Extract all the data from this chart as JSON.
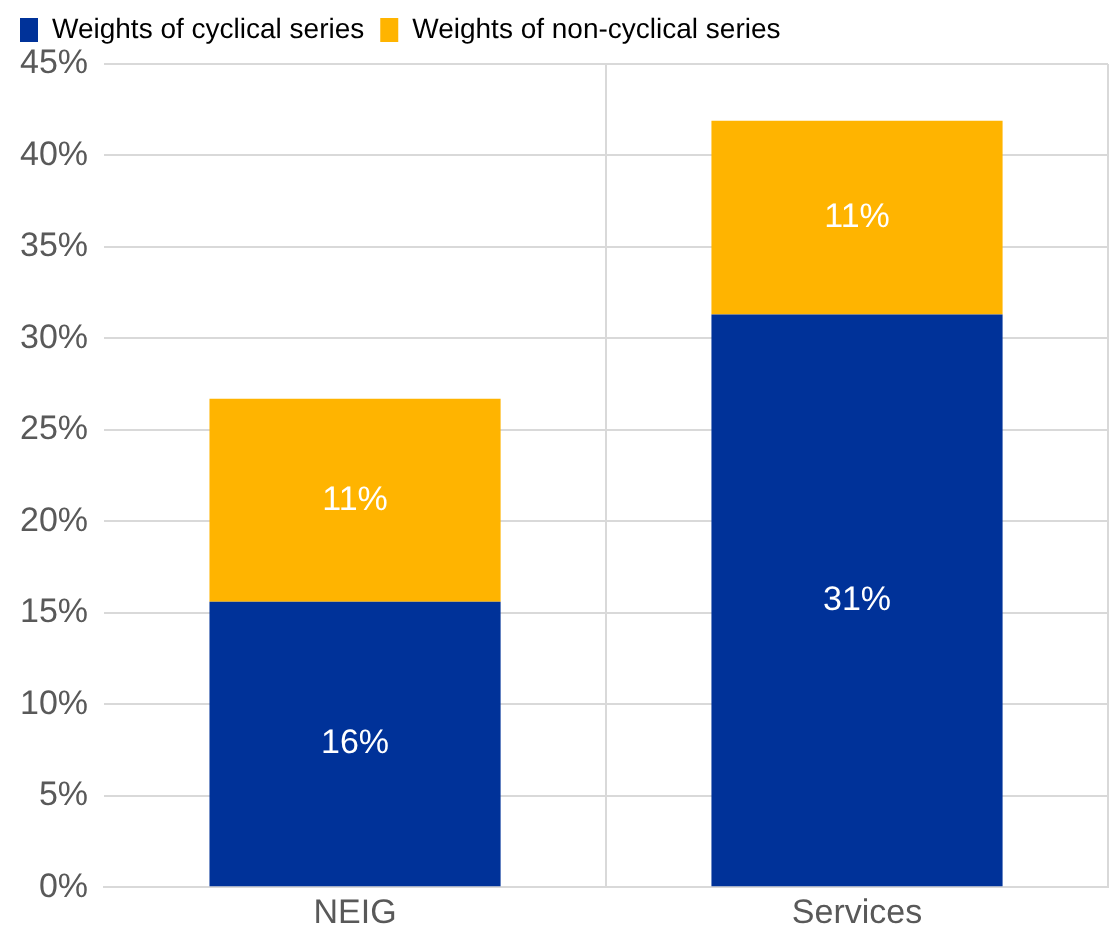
{
  "chart_data": {
    "type": "bar",
    "stacked": true,
    "categories": [
      "NEIG",
      "Services"
    ],
    "series": [
      {
        "name": "Weights of cyclical series",
        "color": "#003299",
        "values": [
          15.6,
          31.3
        ],
        "value_labels": [
          "16%",
          "31%"
        ]
      },
      {
        "name": "Weights of non-cyclical series",
        "color": "#ffb400",
        "values": [
          11.1,
          10.6
        ],
        "value_labels": [
          "11%",
          "11%"
        ]
      }
    ],
    "ylim": [
      0,
      45
    ],
    "yticks": [
      {
        "value": 0,
        "label": "0%"
      },
      {
        "value": 5,
        "label": "5%"
      },
      {
        "value": 10,
        "label": "10%"
      },
      {
        "value": 15,
        "label": "15%"
      },
      {
        "value": 20,
        "label": "20%"
      },
      {
        "value": 25,
        "label": "25%"
      },
      {
        "value": 30,
        "label": "30%"
      },
      {
        "value": 35,
        "label": "35%"
      },
      {
        "value": 40,
        "label": "40%"
      },
      {
        "value": 45,
        "label": "45%"
      }
    ],
    "grid": true,
    "legend": "top left"
  }
}
